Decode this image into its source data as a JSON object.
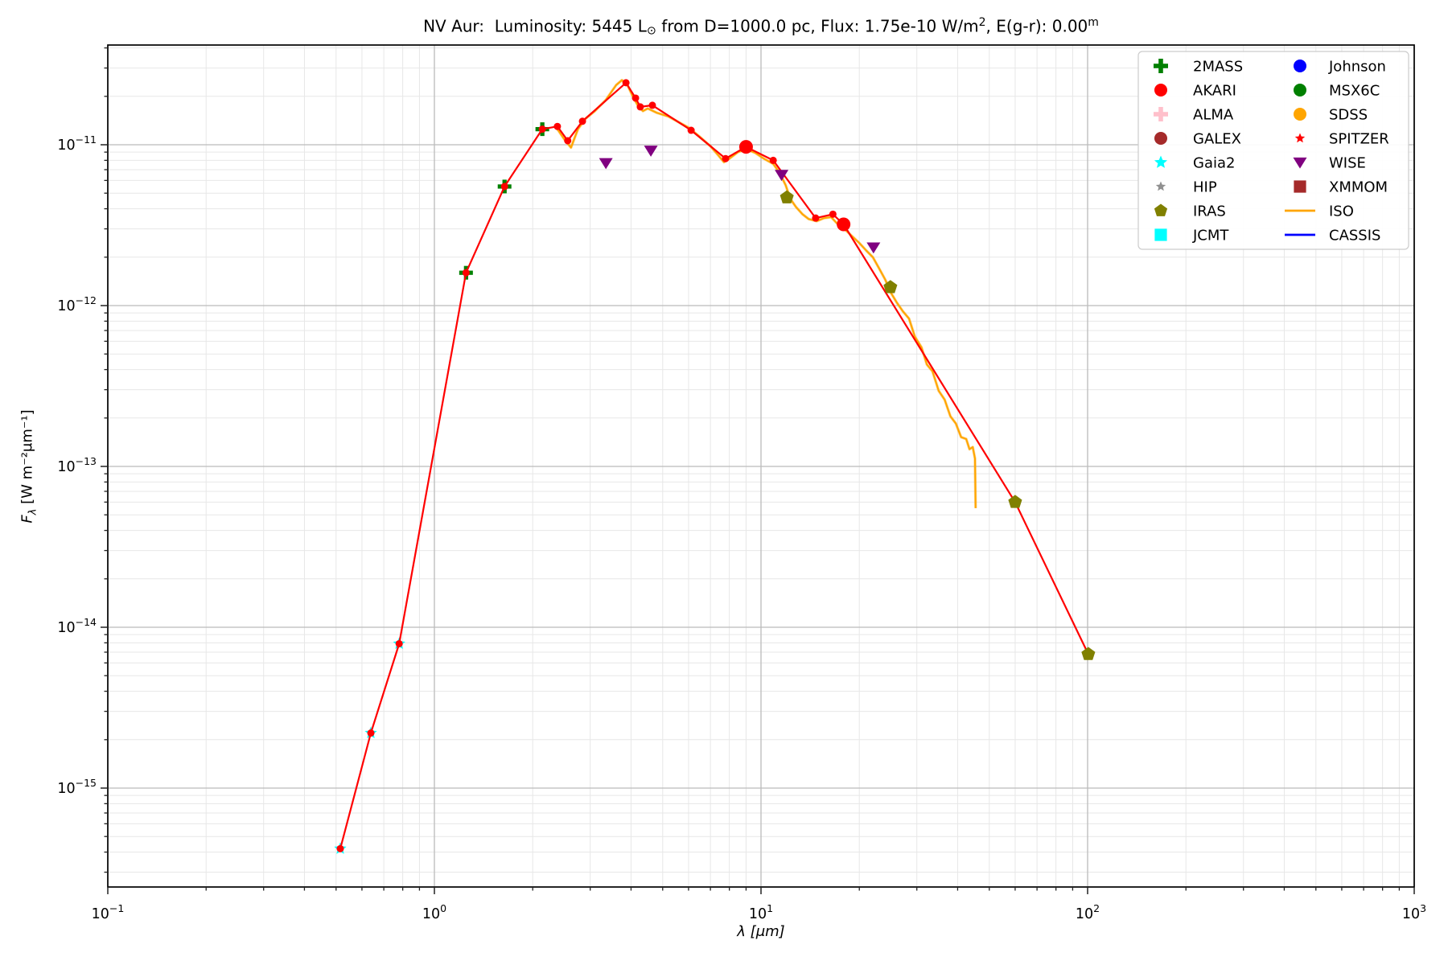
{
  "title": {
    "part1": "NV Aur:  Luminosity: 5445 L",
    "sun": "⊙",
    "part2": " from D=1000.0 pc, Flux: 1.75e-10 W/m",
    "sup_2": "2",
    "part3": ", E(g-r): 0.00",
    "sup_m": "m"
  },
  "chart_data": {
    "type": "line",
    "title": "NV Aur:  Luminosity: 5445 L⊙ from D=1000.0 pc, Flux: 1.75e-10 W/m², E(g-r): 0.00ᵐ",
    "x_axis": {
      "label": "λ [μm]",
      "scale": "log",
      "tick_exponents": [
        -1,
        0,
        1,
        2,
        3
      ],
      "range": [
        0.1,
        1000
      ]
    },
    "y_axis": {
      "label_symbol": "F",
      "label_sub": "λ",
      "label_units": " [W m⁻²μm⁻¹]",
      "scale": "log",
      "tick_exponents": [
        -11,
        -12,
        -13,
        -14,
        -15
      ],
      "range": [
        2.43e-16,
        4.17e-11
      ]
    },
    "grid": {
      "major_color": "#bbbbbb",
      "minor_color": "#e7e7e7",
      "background": "#ffffff"
    },
    "series": [
      {
        "name": "ISO",
        "type": "line",
        "color": "#ffa500",
        "width": 2,
        "points": [
          [
            2.38,
            1.25e-11
          ],
          [
            2.5,
            1.08e-11
          ],
          [
            2.62,
            9.6e-12
          ],
          [
            2.75,
            1.25e-11
          ],
          [
            2.9,
            1.45e-11
          ],
          [
            3.1,
            1.62e-11
          ],
          [
            3.35,
            1.9e-11
          ],
          [
            3.6,
            2.35e-11
          ],
          [
            3.75,
            2.52e-11
          ],
          [
            3.9,
            2.35e-11
          ],
          [
            4.05,
            2e-11
          ],
          [
            4.2,
            1.75e-11
          ],
          [
            4.35,
            1.62e-11
          ],
          [
            4.5,
            1.68e-11
          ],
          [
            4.8,
            1.58e-11
          ],
          [
            5.2,
            1.5e-11
          ],
          [
            5.6,
            1.38e-11
          ],
          [
            6.0,
            1.28e-11
          ],
          [
            6.5,
            1.12e-11
          ],
          [
            7.0,
            9.8e-12
          ],
          [
            7.4,
            8.6e-12
          ],
          [
            7.7,
            7.8e-12
          ],
          [
            8.0,
            8.2e-12
          ],
          [
            8.5,
            9e-12
          ],
          [
            9.0,
            9.4e-12
          ],
          [
            9.6,
            8.9e-12
          ],
          [
            10.2,
            8.2e-12
          ],
          [
            10.9,
            7.6e-12
          ],
          [
            11.4,
            6.7e-12
          ],
          [
            11.9,
            5.6e-12
          ],
          [
            12.3,
            4.6e-12
          ],
          [
            12.8,
            4.1e-12
          ],
          [
            13.4,
            3.7e-12
          ],
          [
            14.0,
            3.45e-12
          ],
          [
            14.8,
            3.35e-12
          ],
          [
            15.6,
            3.5e-12
          ],
          [
            16.4,
            3.55e-12
          ],
          [
            17.2,
            3.2e-12
          ],
          [
            18.0,
            3e-12
          ],
          [
            19,
            2.7e-12
          ],
          [
            20,
            2.45e-12
          ],
          [
            21,
            2.2e-12
          ],
          [
            22,
            2e-12
          ],
          [
            23,
            1.7e-12
          ],
          [
            24,
            1.45e-12
          ],
          [
            25,
            1.2e-12
          ],
          [
            26,
            1.05e-12
          ],
          [
            27.2,
            9.2e-13
          ],
          [
            28.4,
            8.3e-13
          ],
          [
            29.6,
            6.4e-13
          ],
          [
            31,
            5.5e-13
          ],
          [
            32.2,
            4.3e-13
          ],
          [
            33.5,
            3.9e-13
          ],
          [
            35,
            2.95e-13
          ],
          [
            36.5,
            2.6e-13
          ],
          [
            38,
            2.05e-13
          ],
          [
            39.5,
            1.85e-13
          ],
          [
            41,
            1.52e-13
          ],
          [
            42.5,
            1.48e-13
          ],
          [
            43.5,
            1.28e-13
          ],
          [
            44.5,
            1.32e-13
          ],
          [
            45.2,
            1.12e-13
          ],
          [
            45.4,
            5.5e-14
          ]
        ]
      },
      {
        "name": "Gaia2",
        "type": "scatter",
        "marker": "star",
        "color": "#00ffff",
        "size": 8,
        "points": [
          [
            0.515,
            4.2e-16
          ],
          [
            0.639,
            2.2e-15
          ],
          [
            0.78,
            7.9e-15
          ]
        ]
      },
      {
        "name": "2MASS",
        "type": "scatter",
        "marker": "plus",
        "color": "#008000",
        "size": 8.5,
        "points": [
          [
            1.25,
            1.6e-12
          ],
          [
            1.64,
            5.5e-12
          ],
          [
            2.14,
            1.25e-11
          ]
        ]
      },
      {
        "name": "photometry-sed",
        "type": "line",
        "color": "#ff0000",
        "width": 2.2,
        "marker": "dot",
        "size": 4.5,
        "points": [
          [
            0.515,
            4.2e-16
          ],
          [
            0.639,
            2.2e-15
          ],
          [
            0.78,
            7.9e-15
          ],
          [
            1.25,
            1.6e-12
          ],
          [
            1.64,
            5.5e-12
          ],
          [
            2.14,
            1.25e-11
          ],
          [
            2.38,
            1.3e-11
          ],
          [
            2.56,
            1.06e-11
          ],
          [
            2.84,
            1.4e-11
          ],
          [
            3.86,
            2.43e-11
          ],
          [
            4.13,
            1.95e-11
          ],
          [
            4.27,
            1.72e-11
          ],
          [
            4.65,
            1.76e-11
          ],
          [
            6.11,
            1.23e-11
          ],
          [
            7.79,
            8.2e-12
          ],
          [
            9.0,
            9.7e-12
          ],
          [
            10.9,
            8e-12
          ],
          [
            14.7,
            3.5e-12
          ],
          [
            16.6,
            3.7e-12
          ],
          [
            17.9,
            3.2e-12
          ],
          [
            60.0,
            6e-14
          ],
          [
            100.5,
            6.8e-15
          ]
        ]
      },
      {
        "name": "AKARI",
        "type": "scatter",
        "marker": "circle",
        "color": "#ff0000",
        "size": 8.5,
        "points": [
          [
            9.0,
            9.7e-12
          ],
          [
            17.9,
            3.2e-12
          ]
        ]
      },
      {
        "name": "WISE",
        "type": "scatter",
        "marker": "triangle-down",
        "color": "#800080",
        "size": 8.5,
        "points": [
          [
            3.35,
            7.7e-12
          ],
          [
            4.6,
            9.2e-12
          ],
          [
            11.56,
            6.5e-12
          ],
          [
            22.1,
            2.3e-12
          ]
        ]
      },
      {
        "name": "IRAS",
        "type": "scatter",
        "marker": "pentagon",
        "color": "#808000",
        "size": 9,
        "points": [
          [
            12.0,
            4.7e-12
          ],
          [
            24.9,
            1.3e-12
          ],
          [
            60.0,
            6e-14
          ],
          [
            100.5,
            6.8e-15
          ]
        ]
      }
    ],
    "legend": {
      "position": "upper right",
      "columns": 2,
      "entries": [
        {
          "label": "2MASS",
          "marker": "plus",
          "color": "#008000",
          "size": 9
        },
        {
          "label": "AKARI",
          "marker": "circle",
          "color": "#ff0000",
          "size": 8
        },
        {
          "label": "ALMA",
          "marker": "plus",
          "color": "#ffc0cb",
          "size": 9
        },
        {
          "label": "GALEX",
          "marker": "circle",
          "color": "#a52a2a",
          "size": 8
        },
        {
          "label": "Gaia2",
          "marker": "star",
          "color": "#00ffff",
          "size": 8.5
        },
        {
          "label": "HIP",
          "marker": "star-small",
          "color": "#909090",
          "size": 6.5
        },
        {
          "label": "IRAS",
          "marker": "pentagon",
          "color": "#808000",
          "size": 8.5
        },
        {
          "label": "JCMT",
          "marker": "square",
          "color": "#00ffff",
          "size": 8
        },
        {
          "label": "Johnson",
          "marker": "circle",
          "color": "#0000ff",
          "size": 8
        },
        {
          "label": "MSX6C",
          "marker": "circle",
          "color": "#008000",
          "size": 8
        },
        {
          "label": "SDSS",
          "marker": "circle",
          "color": "#ffa500",
          "size": 8
        },
        {
          "label": "SPITZER",
          "marker": "star-small",
          "color": "#ff0000",
          "size": 6.5
        },
        {
          "label": "WISE",
          "marker": "triangle-down",
          "color": "#800080",
          "size": 8.5
        },
        {
          "label": "XMMOM",
          "marker": "square",
          "color": "#a52a2a",
          "size": 8
        },
        {
          "label": "ISO",
          "marker": "hline",
          "color": "#ffa500",
          "size": 8
        },
        {
          "label": "CASSIS",
          "marker": "hline",
          "color": "#0000ff",
          "size": 8
        }
      ]
    }
  }
}
